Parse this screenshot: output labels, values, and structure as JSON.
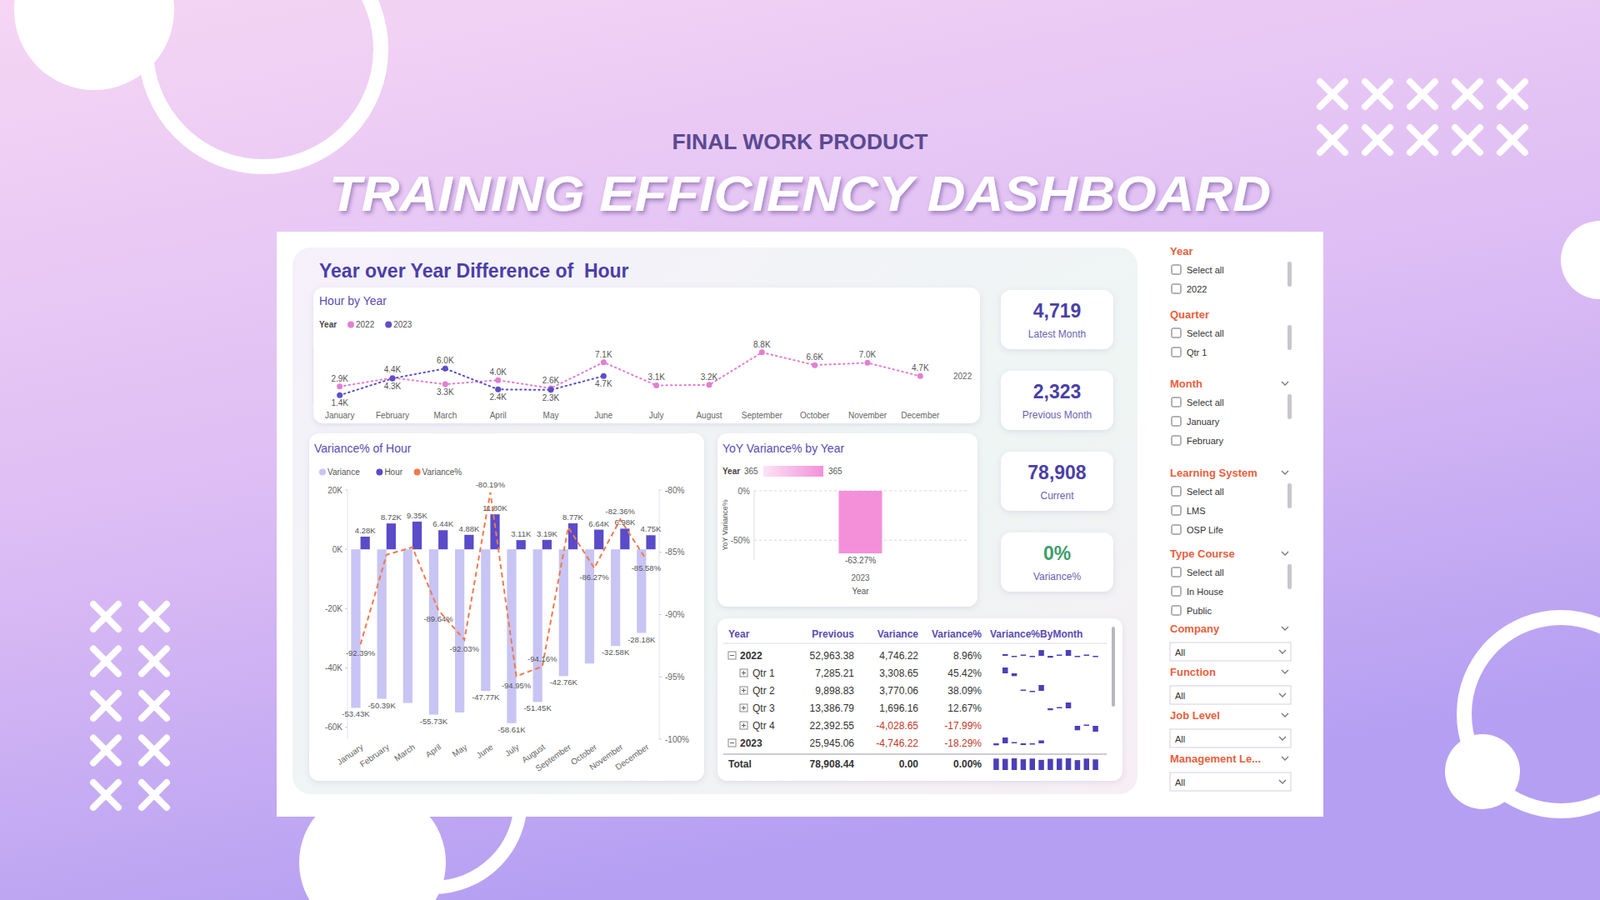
{
  "header": {
    "subtitle": "FINAL WORK PRODUCT",
    "title": "TRAINING EFFICIENCY DASHBOARD"
  },
  "dashboard_title": "Year over Year Difference of  Hour",
  "chart_data": [
    {
      "type": "line",
      "title": "Hour by Year",
      "legend_title": "Year",
      "legend": "top-left",
      "categories": [
        "January",
        "February",
        "March",
        "April",
        "May",
        "June",
        "July",
        "August",
        "September",
        "October",
        "November",
        "December"
      ],
      "series": [
        {
          "name": "2022",
          "color": "#e27fd2",
          "line_style": "dotted",
          "marker": "circle",
          "values": [
            2900,
            4400,
            3300,
            4000,
            2600,
            7100,
            3100,
            3200,
            8800,
            6600,
            7000,
            4700
          ],
          "value_labels": [
            "2.9K",
            "4.4K",
            "3.3K",
            "4.0K",
            "2.6K",
            "7.1K",
            "3.1K",
            "3.2K",
            "8.8K",
            "6.6K",
            "7.0K",
            "4.7K"
          ]
        },
        {
          "name": "2023",
          "color": "#5b4fc8",
          "line_style": "dotted",
          "marker": "circle",
          "values": [
            1400,
            4300,
            6000,
            2400,
            2323,
            4719,
            null,
            null,
            null,
            null,
            null,
            null
          ],
          "value_labels": [
            "1.4K",
            "4.3K",
            "6.0K",
            "2.4K",
            "2.3K",
            "4.7K",
            null,
            null,
            null,
            null,
            null,
            null
          ]
        }
      ],
      "ylim": [
        0,
        9500
      ],
      "data_labels": true,
      "tick_labels": "x"
    },
    {
      "type": "bar",
      "title": "Variance% of Hour",
      "legend": "top-left",
      "categories": [
        "January",
        "February",
        "March",
        "April",
        "May",
        "June",
        "July",
        "August",
        "September",
        "October",
        "November",
        "December"
      ],
      "series": [
        {
          "name": "Variance",
          "type": "bar",
          "color": "#c8c4f4",
          "values": [
            -53430,
            -50390,
            -51800,
            -55730,
            -55000,
            -47770,
            -58610,
            -51450,
            -42760,
            -38500,
            -32580,
            -28180
          ],
          "value_labels": [
            "-53.43K",
            "-50.39K",
            null,
            "-55.73K",
            null,
            "-47.77K",
            "-58.61K",
            "-51.45K",
            "-42.76K",
            null,
            "-32.58K",
            "-28.18K"
          ]
        },
        {
          "name": "Hour",
          "type": "bar",
          "color": "#5a4bc9",
          "values": [
            4280,
            8720,
            9350,
            6440,
            4880,
            11800,
            3110,
            3190,
            8770,
            6640,
            6980,
            4750
          ],
          "value_labels": [
            "4.28K",
            "8.72K",
            "9.35K",
            "6.44K",
            "4.88K",
            "11.80K",
            "3.11K",
            "3.19K",
            "8.77K",
            "6.64K",
            "6.98K",
            "4.75K"
          ]
        },
        {
          "name": "Variance%",
          "type": "line",
          "axis": "y2",
          "color": "#f07a4e",
          "line_style": "dashed",
          "values": [
            -92.39,
            -85.2,
            -84.6,
            -89.64,
            -92.03,
            -80.19,
            -94.95,
            -94.16,
            -83.0,
            -86.27,
            -82.36,
            -85.58
          ],
          "value_labels": [
            "-92.39%",
            null,
            null,
            "-89.64%",
            "-92.03%",
            "-80.19%",
            "-94.95%",
            "-94.16%",
            null,
            "-86.27%",
            "-82.36%",
            "-85.58%"
          ]
        }
      ],
      "ylim": [
        -64000,
        20000
      ],
      "yticks": [
        {
          "value": 20000,
          "label": "20K"
        },
        {
          "value": 0,
          "label": "0K"
        },
        {
          "value": -20000,
          "label": "-20K"
        },
        {
          "value": -40000,
          "label": "-40K"
        },
        {
          "value": -60000,
          "label": "-60K"
        }
      ],
      "y2lim": [
        -100,
        -80
      ],
      "y2ticks": [
        {
          "value": -80,
          "label": "-80%"
        },
        {
          "value": -85,
          "label": "-85%"
        },
        {
          "value": -90,
          "label": "-90%"
        },
        {
          "value": -95,
          "label": "-95%"
        },
        {
          "value": -100,
          "label": "-100%"
        }
      ],
      "data_labels": true,
      "grid": false
    },
    {
      "type": "bar",
      "title": "YoY Variance% by Year",
      "legend_title": "Year",
      "color_range": [
        365,
        365
      ],
      "categories": [
        "2023"
      ],
      "values": [
        -63.27
      ],
      "value_labels": [
        "-63.27%"
      ],
      "color": "#f390d9",
      "xlabel": "Year",
      "ylabel": "YoY Variance%",
      "ylim": [
        -70,
        0
      ],
      "yticks": [
        {
          "value": 0,
          "label": "0%"
        },
        {
          "value": -50,
          "label": "-50%"
        }
      ],
      "grid": true,
      "data_labels": true
    }
  ],
  "kpis": [
    {
      "value": "4,719",
      "label": "Latest Month",
      "color": "#4b3fa8"
    },
    {
      "value": "2,323",
      "label": "Previous Month",
      "color": "#4b3fa8"
    },
    {
      "value": "78,908",
      "label": "Current",
      "color": "#4b3fa8"
    },
    {
      "value": "0%",
      "label": "Variance%",
      "color": "#3f9e6a"
    }
  ],
  "table": {
    "columns": [
      "Year",
      "Previous",
      "Variance",
      "Variance%",
      "Variance%ByMonth"
    ],
    "rows": [
      {
        "cells": [
          "2022",
          "52,963.38",
          "4,746.22",
          "8.96%"
        ],
        "spark": [
          null,
          52,
          -25,
          21,
          -35,
          173,
          -56,
          3,
          175,
          -25,
          6,
          -33
        ],
        "rows": [
          {
            "cells": [
              "Qtr 1",
              "7,285.21",
              "3,308.65",
              "45.42%"
            ],
            "spark": [
              null,
              52,
              -25
            ]
          },
          {
            "cells": [
              "Qtr 2",
              "9,898.83",
              "3,770.06",
              "38.09%"
            ],
            "spark": [
              21,
              -35,
              173
            ]
          },
          {
            "cells": [
              "Qtr 3",
              "13,386.79",
              "1,696.16",
              "12.67%"
            ],
            "spark": [
              -56,
              3,
              175
            ]
          },
          {
            "cells": [
              "Qtr 4",
              "22,392.55",
              "-4,028.65",
              "-17.99%"
            ],
            "spark": [
              -25,
              6,
              -33
            ]
          }
        ]
      },
      {
        "cells": [
          "2023",
          "25,945.06",
          "-4,746.22",
          "-18.29%"
        ],
        "spark": [
          -70,
          207,
          40,
          -60,
          -4,
          104
        ]
      }
    ],
    "total": {
      "cells": [
        "Total",
        "78,908.44",
        "0.00",
        "0.00%"
      ],
      "spark": [
        90,
        88,
        92,
        85,
        90,
        80,
        88,
        90,
        92,
        78,
        90,
        84
      ]
    }
  },
  "slicers": [
    {
      "title": "Year",
      "options": [
        "Select all",
        "2022"
      ]
    },
    {
      "title": "Quarter",
      "options": [
        "Select all",
        "Qtr 1"
      ]
    },
    {
      "title": "Month",
      "options": [
        "Select all",
        "January",
        "February"
      ]
    },
    {
      "title": "Learning System",
      "options": [
        "Select all",
        "LMS",
        "OSP Life"
      ]
    },
    {
      "title": "Type Course",
      "options": [
        "Select all",
        "In House",
        "Public"
      ]
    },
    {
      "title": "Company",
      "selected": "All"
    },
    {
      "title": "Function",
      "selected": "All"
    },
    {
      "title": "Job Level",
      "selected": "All"
    },
    {
      "title": "Management Le...",
      "selected": "All"
    }
  ]
}
